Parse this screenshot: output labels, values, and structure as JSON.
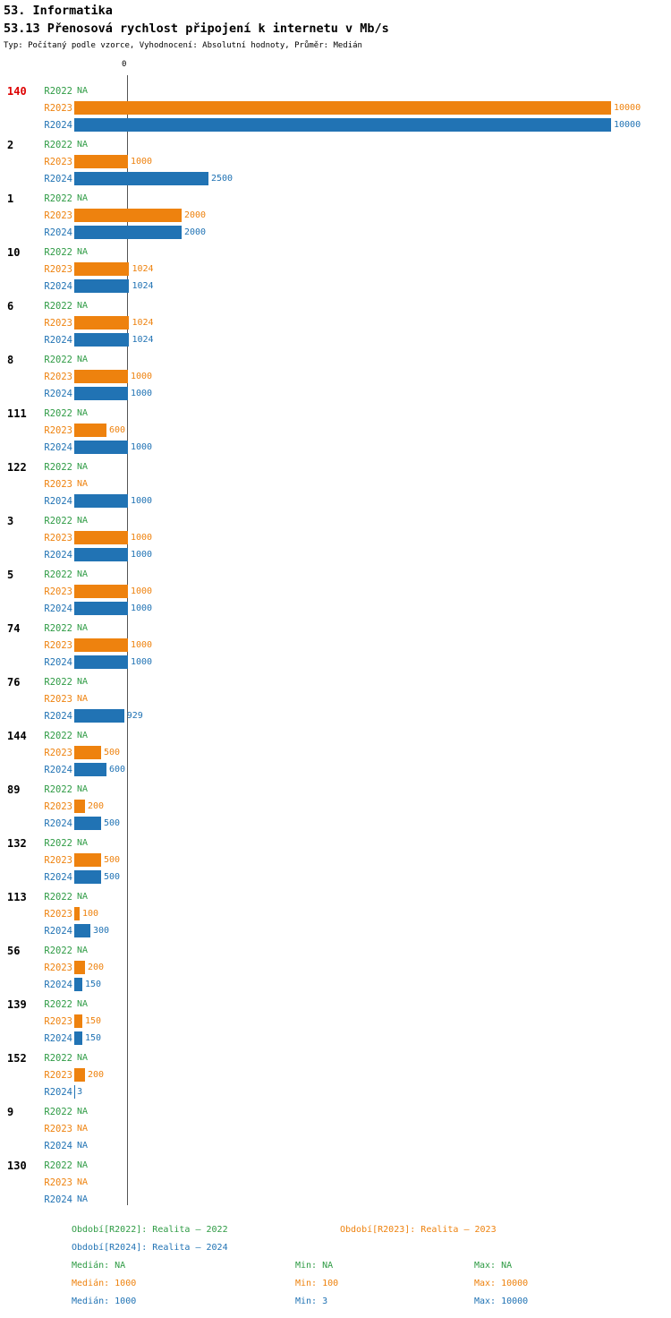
{
  "meta": {
    "title": "53. Informatika",
    "subtitle": "53.13 Přenosová rychlost připojení k internetu v Mb/s",
    "info": "Typ: Počítaný podle vzorce, Vyhodnocení: Absolutní hodnoty, Průměr: Medián",
    "axis_zero_label": "0"
  },
  "chart_data": {
    "type": "bar",
    "orientation": "horizontal",
    "title": "53.13 Přenosová rychlost připojení k internetu v Mb/s",
    "xlim": [
      0,
      10000
    ],
    "reference_line_value": 1000,
    "na_text": "NA",
    "series_labels": [
      "R2022",
      "R2023",
      "R2024"
    ],
    "series_colors": [
      "#2e9b44",
      "#ee820e",
      "#2173b4"
    ],
    "highlight_color": "#dd0000",
    "groups": [
      {
        "id": "140",
        "highlight": true,
        "values": [
          null,
          10000,
          10000
        ]
      },
      {
        "id": "2",
        "highlight": false,
        "values": [
          null,
          1000,
          2500
        ]
      },
      {
        "id": "1",
        "highlight": false,
        "values": [
          null,
          2000,
          2000
        ]
      },
      {
        "id": "10",
        "highlight": false,
        "values": [
          null,
          1024,
          1024
        ]
      },
      {
        "id": "6",
        "highlight": false,
        "values": [
          null,
          1024,
          1024
        ]
      },
      {
        "id": "8",
        "highlight": false,
        "values": [
          null,
          1000,
          1000
        ]
      },
      {
        "id": "111",
        "highlight": false,
        "values": [
          null,
          600,
          1000
        ]
      },
      {
        "id": "122",
        "highlight": false,
        "values": [
          null,
          null,
          1000
        ]
      },
      {
        "id": "3",
        "highlight": false,
        "values": [
          null,
          1000,
          1000
        ]
      },
      {
        "id": "5",
        "highlight": false,
        "values": [
          null,
          1000,
          1000
        ]
      },
      {
        "id": "74",
        "highlight": false,
        "values": [
          null,
          1000,
          1000
        ]
      },
      {
        "id": "76",
        "highlight": false,
        "values": [
          null,
          null,
          929
        ]
      },
      {
        "id": "144",
        "highlight": false,
        "values": [
          null,
          500,
          600
        ]
      },
      {
        "id": "89",
        "highlight": false,
        "values": [
          null,
          200,
          500
        ]
      },
      {
        "id": "132",
        "highlight": false,
        "values": [
          null,
          500,
          500
        ]
      },
      {
        "id": "113",
        "highlight": false,
        "values": [
          null,
          100,
          300
        ]
      },
      {
        "id": "56",
        "highlight": false,
        "values": [
          null,
          200,
          150
        ]
      },
      {
        "id": "139",
        "highlight": false,
        "values": [
          null,
          150,
          150
        ]
      },
      {
        "id": "152",
        "highlight": false,
        "values": [
          null,
          200,
          3
        ]
      },
      {
        "id": "9",
        "highlight": false,
        "values": [
          null,
          null,
          null
        ]
      },
      {
        "id": "130",
        "highlight": false,
        "values": [
          null,
          null,
          null
        ]
      }
    ]
  },
  "legend": [
    {
      "series": "R2022",
      "label": "Období[R2022]: Realita – 2022"
    },
    {
      "series": "R2023",
      "label": "Období[R2023]: Realita – 2023"
    },
    {
      "series": "R2024",
      "label": "Období[R2024]: Realita – 2024"
    }
  ],
  "stats": [
    {
      "series": "R2022",
      "median": "Medián: NA",
      "min": "Min: NA",
      "max": "Max: NA"
    },
    {
      "series": "R2023",
      "median": "Medián: 1000",
      "min": "Min: 100",
      "max": "Max: 10000"
    },
    {
      "series": "R2024",
      "median": "Medián: 1000",
      "min": "Min: 3",
      "max": "Max: 10000"
    }
  ]
}
